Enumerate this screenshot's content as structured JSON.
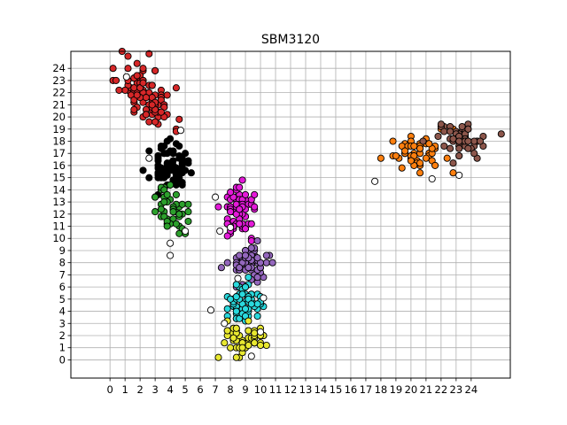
{
  "chart_data": {
    "type": "scatter",
    "title": "SBM3120",
    "xlabel": "",
    "ylabel": "",
    "xlim": [
      -2.6,
      26.6
    ],
    "ylim": [
      -1.5,
      25.4
    ],
    "xticks": [
      0,
      1,
      2,
      3,
      4,
      5,
      6,
      7,
      8,
      9,
      10,
      11,
      12,
      13,
      14,
      15,
      16,
      17,
      18,
      19,
      20,
      21,
      22,
      23,
      24
    ],
    "yticks": [
      0,
      1,
      2,
      3,
      4,
      5,
      6,
      7,
      8,
      9,
      10,
      11,
      12,
      13,
      14,
      15,
      16,
      17,
      18,
      19,
      20,
      21,
      22,
      23,
      24
    ],
    "grid": true,
    "clusters": [
      {
        "color": "#d62728",
        "cx": 2.4,
        "cy": 21.9,
        "sx": 0.9,
        "sy": 1.5,
        "n": 95,
        "corr": -0.55,
        "seed": 11
      },
      {
        "color": "#000000",
        "cx": 3.9,
        "cy": 15.9,
        "sx": 0.6,
        "sy": 0.9,
        "n": 75,
        "corr": 0.0,
        "seed": 23
      },
      {
        "color": "#2ca02c",
        "cx": 4.1,
        "cy": 12.3,
        "sx": 0.5,
        "sy": 0.9,
        "n": 45,
        "corr": -0.3,
        "seed": 37
      },
      {
        "color": "#e41ad9",
        "cx": 8.7,
        "cy": 12.3,
        "sx": 0.6,
        "sy": 1.0,
        "n": 75,
        "corr": 0.0,
        "seed": 41
      },
      {
        "color": "#9467bd",
        "cx": 9.3,
        "cy": 8.0,
        "sx": 0.7,
        "sy": 0.8,
        "n": 70,
        "corr": 0.0,
        "seed": 53
      },
      {
        "color": "#2ad9dd",
        "cx": 8.9,
        "cy": 4.5,
        "sx": 0.6,
        "sy": 0.9,
        "n": 65,
        "corr": 0.0,
        "seed": 67
      },
      {
        "color": "#e8e830",
        "cx": 9.0,
        "cy": 1.6,
        "sx": 0.8,
        "sy": 0.7,
        "n": 60,
        "corr": 0.0,
        "seed": 71
      },
      {
        "color": "#ff7f0e",
        "cx": 20.6,
        "cy": 17.0,
        "sx": 0.9,
        "sy": 0.8,
        "n": 55,
        "corr": 0.0,
        "seed": 83
      },
      {
        "color": "#8c564b",
        "cx": 22.9,
        "cy": 18.2,
        "sx": 1.0,
        "sy": 0.7,
        "n": 65,
        "corr": -0.2,
        "seed": 97
      }
    ],
    "outliers": [
      {
        "x": 1.1,
        "y": 23.3
      },
      {
        "x": 4.7,
        "y": 18.9
      },
      {
        "x": 2.6,
        "y": 16.6
      },
      {
        "x": 4.0,
        "y": 9.6
      },
      {
        "x": 4.0,
        "y": 8.6
      },
      {
        "x": 5.0,
        "y": 10.6
      },
      {
        "x": 7.3,
        "y": 10.6
      },
      {
        "x": 6.7,
        "y": 4.1
      },
      {
        "x": 8.5,
        "y": 6.7
      },
      {
        "x": 10.2,
        "y": 5.1
      },
      {
        "x": 7.0,
        "y": 13.4
      },
      {
        "x": 17.6,
        "y": 14.7
      },
      {
        "x": 21.4,
        "y": 14.9
      },
      {
        "x": 23.2,
        "y": 15.2
      },
      {
        "x": 10.0,
        "y": 2.3
      },
      {
        "x": 7.6,
        "y": 3.0
      },
      {
        "x": 8.0,
        "y": 10.9
      },
      {
        "x": 9.4,
        "y": 0.3
      }
    ]
  }
}
